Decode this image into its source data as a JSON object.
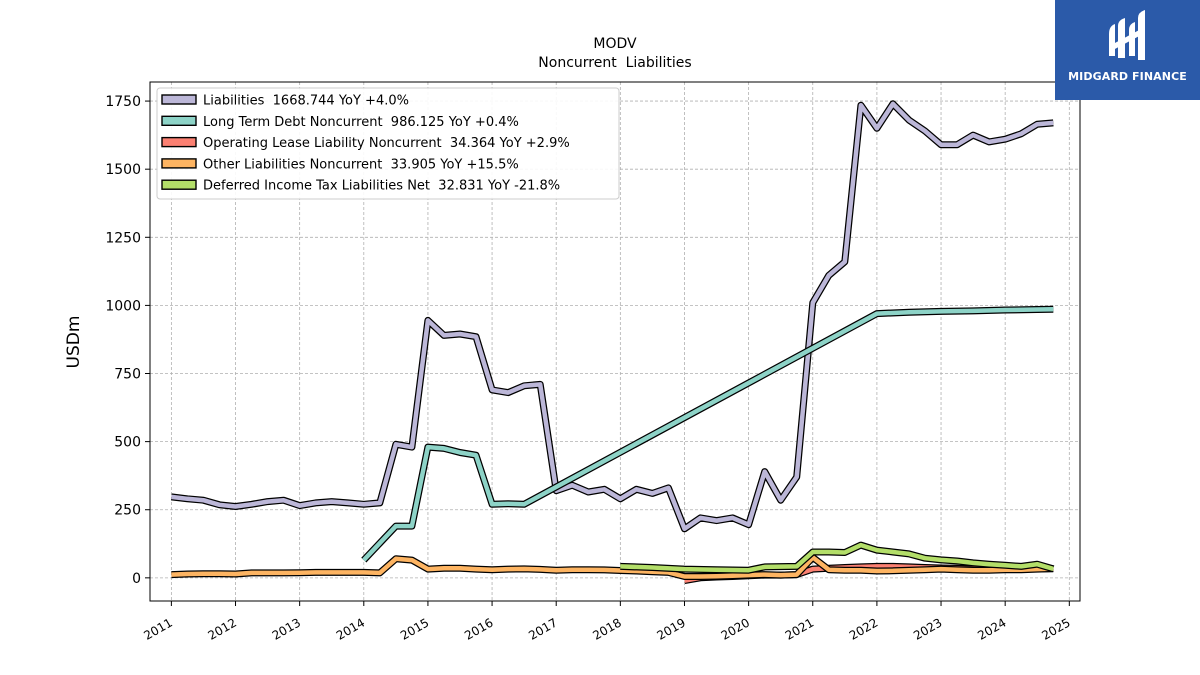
{
  "logo": {
    "text": "MIDGARD FINANCE",
    "bg_color": "#2b5aa9"
  },
  "chart_data": {
    "type": "line",
    "title": "MODV",
    "subtitle": "Noncurrent  Liabilities",
    "ylabel": "USDm",
    "xlabel": "",
    "xlim": [
      "2010-09",
      "2025-03"
    ],
    "ylim": [
      -85,
      1820
    ],
    "yticks": [
      0,
      250,
      500,
      750,
      1000,
      1250,
      1500,
      1750
    ],
    "xticks": [
      "2011",
      "2012",
      "2013",
      "2014",
      "2015",
      "2016",
      "2017",
      "2018",
      "2019",
      "2020",
      "2021",
      "2022",
      "2023",
      "2024",
      "2025"
    ],
    "grid": true,
    "legend_position": "top-left",
    "series": [
      {
        "name": "Liabilities  1668.744 YoY +4.0%",
        "color": "#bcb7d8",
        "x": [
          "2011-01",
          "2011-04",
          "2011-07",
          "2011-10",
          "2012-01",
          "2012-04",
          "2012-07",
          "2012-10",
          "2013-01",
          "2013-04",
          "2013-07",
          "2013-10",
          "2014-01",
          "2014-04",
          "2014-07",
          "2014-10",
          "2015-01",
          "2015-04",
          "2015-07",
          "2015-10",
          "2016-01",
          "2016-04",
          "2016-07",
          "2016-10",
          "2017-01",
          "2017-04",
          "2017-07",
          "2017-10",
          "2018-01",
          "2018-04",
          "2018-07",
          "2018-10",
          "2019-01",
          "2019-04",
          "2019-07",
          "2019-10",
          "2020-01",
          "2020-04",
          "2020-07",
          "2020-10",
          "2021-01",
          "2021-04",
          "2021-07",
          "2021-10",
          "2022-01",
          "2022-04",
          "2022-07",
          "2022-10",
          "2023-01",
          "2023-04",
          "2023-07",
          "2023-10",
          "2024-01",
          "2024-04",
          "2024-07",
          "2024-10"
        ],
        "values": [
          297,
          290,
          285,
          268,
          262,
          270,
          280,
          285,
          265,
          275,
          280,
          275,
          270,
          275,
          490,
          480,
          945,
          890,
          895,
          885,
          690,
          680,
          705,
          710,
          320,
          340,
          315,
          325,
          290,
          325,
          310,
          330,
          180,
          220,
          210,
          220,
          195,
          390,
          285,
          370,
          1010,
          1110,
          1160,
          1735,
          1650,
          1740,
          1680,
          1640,
          1590,
          1590,
          1625,
          1600,
          1610,
          1630,
          1665,
          1670
        ]
      },
      {
        "name": "Long Term Debt Noncurrent  986.125 YoY +0.4%",
        "color": "#8dd3c7",
        "x": [
          "2014-01",
          "2014-07",
          "2014-10",
          "2015-01",
          "2015-04",
          "2015-07",
          "2015-10",
          "2016-01",
          "2016-04",
          "2016-07",
          "2022-01",
          "2022-07",
          "2023-01",
          "2023-07",
          "2024-01",
          "2024-07",
          "2024-10"
        ],
        "values": [
          65,
          190,
          190,
          480,
          475,
          460,
          450,
          270,
          272,
          270,
          970,
          975,
          978,
          980,
          983,
          985,
          986
        ]
      },
      {
        "name": "Operating Lease Liability Noncurrent  34.364 YoY +2.9%",
        "color": "#fb8072",
        "x": [
          "2019-01",
          "2019-04",
          "2019-07",
          "2019-10",
          "2020-01",
          "2020-04",
          "2020-07",
          "2020-10",
          "2021-01",
          "2021-04",
          "2021-07",
          "2021-10",
          "2022-01",
          "2022-04",
          "2022-07",
          "2022-10",
          "2023-01",
          "2023-04",
          "2023-07",
          "2023-10",
          "2024-01",
          "2024-04",
          "2024-07",
          "2024-10"
        ],
        "values": [
          -10,
          0,
          3,
          5,
          8,
          10,
          10,
          12,
          32,
          35,
          38,
          40,
          42,
          42,
          40,
          38,
          36,
          35,
          33,
          33,
          33,
          33,
          33,
          34
        ]
      },
      {
        "name": "Other Liabilities Noncurrent  33.905 YoY +15.5%",
        "color": "#fdb462",
        "x": [
          "2011-01",
          "2011-04",
          "2011-07",
          "2011-10",
          "2012-01",
          "2012-04",
          "2012-07",
          "2012-10",
          "2013-01",
          "2013-04",
          "2013-07",
          "2013-10",
          "2014-01",
          "2014-04",
          "2014-07",
          "2014-10",
          "2015-01",
          "2015-04",
          "2015-07",
          "2015-10",
          "2016-01",
          "2016-04",
          "2016-07",
          "2016-10",
          "2017-01",
          "2017-04",
          "2017-07",
          "2017-10",
          "2018-01",
          "2018-04",
          "2018-07",
          "2018-10",
          "2019-01",
          "2019-04",
          "2019-07",
          "2019-10",
          "2020-01",
          "2020-04",
          "2020-07",
          "2020-10",
          "2021-01",
          "2021-04",
          "2021-07",
          "2021-10",
          "2022-01",
          "2022-04",
          "2022-07",
          "2022-10",
          "2023-01",
          "2023-04",
          "2023-07",
          "2023-10",
          "2024-01",
          "2024-04",
          "2024-07",
          "2024-10"
        ],
        "values": [
          12,
          14,
          15,
          15,
          14,
          18,
          18,
          18,
          19,
          20,
          20,
          20,
          20,
          18,
          70,
          65,
          32,
          35,
          35,
          32,
          30,
          32,
          33,
          31,
          28,
          30,
          30,
          29,
          27,
          25,
          22,
          20,
          5,
          5,
          6,
          8,
          10,
          12,
          10,
          12,
          75,
          30,
          28,
          28,
          25,
          26,
          28,
          30,
          32,
          30,
          28,
          28,
          30,
          30,
          32,
          34
        ]
      },
      {
        "name": "Deferred Income Tax Liabilities Net  32.831 YoY -21.8%",
        "color": "#b3de69",
        "x": [
          "2018-01",
          "2018-07",
          "2019-01",
          "2019-07",
          "2020-01",
          "2020-04",
          "2020-10",
          "2021-01",
          "2021-04",
          "2021-07",
          "2021-10",
          "2022-01",
          "2022-04",
          "2022-07",
          "2022-10",
          "2023-01",
          "2023-04",
          "2023-07",
          "2023-10",
          "2024-01",
          "2024-04",
          "2024-07",
          "2024-10"
        ],
        "values": [
          42,
          38,
          32,
          30,
          28,
          40,
          42,
          95,
          95,
          93,
          120,
          102,
          95,
          88,
          72,
          66,
          62,
          55,
          50,
          46,
          42,
          50,
          33
        ]
      }
    ]
  }
}
